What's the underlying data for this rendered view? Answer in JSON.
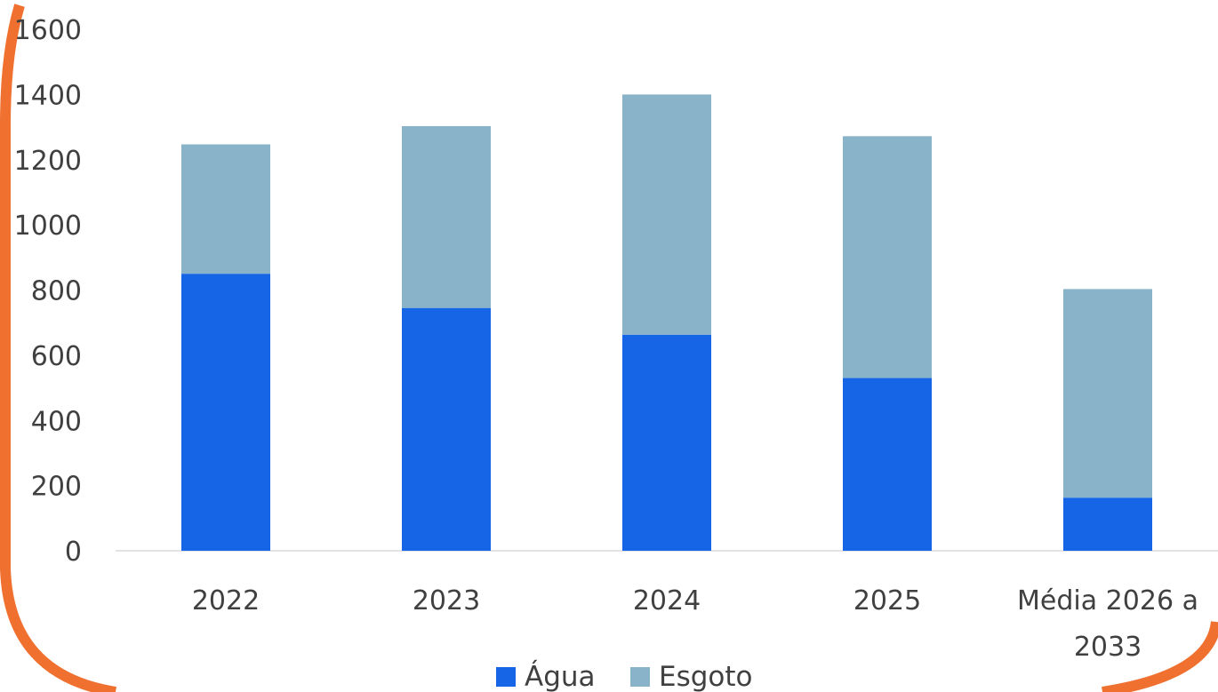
{
  "chart_data": {
    "type": "bar",
    "stacked": true,
    "categories": [
      [
        "2022"
      ],
      [
        "2023"
      ],
      [
        "2024"
      ],
      [
        "2025"
      ],
      [
        "Média 2026 a",
        "2033"
      ]
    ],
    "series": [
      {
        "name": "Água",
        "color": "#1565e6",
        "values": [
          850,
          745,
          663,
          530,
          163
        ]
      },
      {
        "name": "Esgoto",
        "color": "#89b3c8",
        "values": [
          397,
          558,
          737,
          742,
          640
        ]
      }
    ],
    "ylim": [
      0,
      1600
    ],
    "yticks": [
      "0",
      "200",
      "400",
      "600",
      "800",
      "1000",
      "1200",
      "1400",
      "1600"
    ],
    "gridlines": false,
    "legend_position": "bottom",
    "frame_color": "#f07030"
  }
}
